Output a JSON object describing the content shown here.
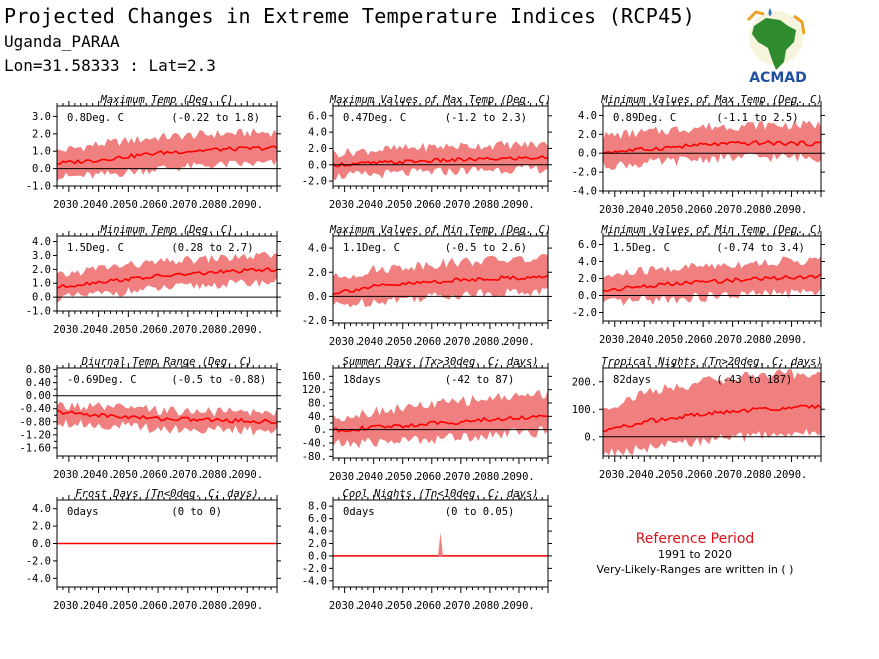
{
  "header": {
    "title": "Projected Changes in Extreme Temperature Indices (RCP45)",
    "location": "Uganda_PARAA",
    "coordinates": "Lon=31.58333 : Lat=2.3"
  },
  "logo": {
    "text": "ACMAD",
    "icon": "africa-map-logo"
  },
  "reference": {
    "title": "Reference Period",
    "years": "1991 to 2020",
    "note": "Very-Likely-Ranges are written in ( )"
  },
  "colors": {
    "band": "#f08080",
    "line": "#ff0000",
    "zero_line": "#000000",
    "ref_title": "#e0101a"
  },
  "chart_data": [
    {
      "type": "area",
      "title": "Maximum Temp (Deg. C)",
      "stat": "0.8Deg. C",
      "range": "(-0.22 to 1.8)",
      "ylim": [
        -1.0,
        3.6
      ],
      "yticks": [
        "3.0",
        "2.0",
        "1.0",
        "0.0",
        "-1.0"
      ],
      "ytick_values": [
        3,
        2,
        1,
        0,
        -1
      ],
      "x": [
        2026,
        2040,
        2060,
        2080,
        2100
      ],
      "median": [
        0.3,
        0.5,
        0.9,
        1.1,
        1.2
      ],
      "lower": [
        -0.5,
        -0.4,
        0.0,
        0.2,
        0.3
      ],
      "upper": [
        1.0,
        1.4,
        1.8,
        2.0,
        2.1
      ],
      "xticks": [
        "2030.",
        "2040.",
        "2050.",
        "2060.",
        "2070.",
        "2080.",
        "2090."
      ]
    },
    {
      "type": "area",
      "title": "Maximum Values of Max Temp (Deg. C)",
      "stat": "0.47Deg. C",
      "range": "(-1.2 to 2.3)",
      "ylim": [
        -2.6,
        7.2
      ],
      "yticks": [
        "6.0",
        "4.0",
        "2.0",
        "0.0",
        "-2.0"
      ],
      "ytick_values": [
        6,
        4,
        2,
        0,
        -2
      ],
      "x": [
        2026,
        2040,
        2060,
        2080,
        2100
      ],
      "median": [
        0.0,
        0.2,
        0.5,
        0.7,
        0.9
      ],
      "lower": [
        -1.4,
        -1.2,
        -0.9,
        -0.6,
        -0.5
      ],
      "upper": [
        1.4,
        1.8,
        2.2,
        2.4,
        2.5
      ],
      "xticks": [
        "2030.",
        "2040.",
        "2050.",
        "2060.",
        "2070.",
        "2080.",
        "2090."
      ]
    },
    {
      "type": "area",
      "title": "Minimum Values of Max Temp (Deg. C)",
      "stat": "0.89Deg. C",
      "range": "(-1.1 to 2.5)",
      "ylim": [
        -4.0,
        5.0
      ],
      "yticks": [
        "4.0",
        "2.0",
        "0.0",
        "-2.0",
        "-4.0"
      ],
      "ytick_values": [
        4,
        2,
        0,
        -2,
        -4
      ],
      "x": [
        2026,
        2040,
        2060,
        2080,
        2100
      ],
      "median": [
        0.1,
        0.4,
        0.9,
        1.1,
        1.0
      ],
      "lower": [
        -1.3,
        -1.1,
        -0.6,
        -0.4,
        -0.5
      ],
      "upper": [
        1.8,
        2.2,
        2.8,
        3.0,
        3.0
      ],
      "xticks": [
        "2030.",
        "2040.",
        "2050.",
        "2060.",
        "2070.",
        "2080.",
        "2090."
      ]
    },
    {
      "type": "area",
      "title": "Minimum Temp (Deg. C)",
      "stat": "1.5Deg. C",
      "range": "(0.28 to 2.7)",
      "ylim": [
        -1.0,
        4.4
      ],
      "yticks": [
        "4.0",
        "3.0",
        "2.0",
        "1.0",
        "0.0",
        "-1.0"
      ],
      "ytick_values": [
        4,
        3,
        2,
        1,
        0,
        -1
      ],
      "x": [
        2026,
        2040,
        2060,
        2080,
        2100
      ],
      "median": [
        0.7,
        1.1,
        1.5,
        1.8,
        2.0
      ],
      "lower": [
        -0.1,
        0.2,
        0.6,
        0.9,
        1.1
      ],
      "upper": [
        1.5,
        2.1,
        2.5,
        2.8,
        3.0
      ],
      "xticks": [
        "2030.",
        "2040.",
        "2050.",
        "2060.",
        "2070.",
        "2080.",
        "2090."
      ]
    },
    {
      "type": "area",
      "title": "Maximum Values of Min Temp (Deg. C)",
      "stat": "1.1Deg. C",
      "range": "(-0.5 to 2.6)",
      "ylim": [
        -2.2,
        5.0
      ],
      "yticks": [
        "4.0",
        "2.0",
        "0.0",
        "-2.0"
      ],
      "ytick_values": [
        4,
        2,
        0,
        -2
      ],
      "x": [
        2026,
        2040,
        2060,
        2080,
        2100
      ],
      "median": [
        0.3,
        0.8,
        1.2,
        1.5,
        1.6
      ],
      "lower": [
        -0.8,
        -0.4,
        0.0,
        0.3,
        0.4
      ],
      "upper": [
        1.5,
        2.2,
        2.7,
        3.0,
        3.1
      ],
      "xticks": [
        "2030.",
        "2040.",
        "2050.",
        "2060.",
        "2070.",
        "2080.",
        "2090."
      ]
    },
    {
      "type": "area",
      "title": "Minimum Values of Min Temp (Deg. C)",
      "stat": "1.5Deg. C",
      "range": "(-0.74 to 3.4)",
      "ylim": [
        -3.0,
        7.0
      ],
      "yticks": [
        "6.0",
        "4.0",
        "2.0",
        "0.0",
        "-2.0"
      ],
      "ytick_values": [
        6,
        4,
        2,
        0,
        -2
      ],
      "x": [
        2026,
        2040,
        2060,
        2080,
        2100
      ],
      "median": [
        0.6,
        1.1,
        1.6,
        2.0,
        2.3
      ],
      "lower": [
        -1.0,
        -0.6,
        -0.2,
        0.2,
        0.4
      ],
      "upper": [
        2.2,
        2.9,
        3.5,
        3.9,
        4.2
      ],
      "xticks": [
        "2030.",
        "2040.",
        "2050.",
        "2060.",
        "2070.",
        "2080.",
        "2090."
      ]
    },
    {
      "type": "area",
      "title": "Diurnal Temp Range (Deg. C)",
      "stat": "-0.69Deg. C",
      "range": "(-0.5 to -0.88)",
      "ylim": [
        -1.85,
        0.85
      ],
      "yticks": [
        "0.80",
        "0.40",
        "0.00",
        "-0.40",
        "-0.80",
        "-1.20",
        "-1.60"
      ],
      "ytick_values": [
        0.8,
        0.4,
        0,
        -0.4,
        -0.8,
        -1.2,
        -1.6
      ],
      "yticks_minor": [
        "0.60",
        "0.20",
        "-0.20",
        "-0.60",
        "-1.00",
        "-1.40"
      ],
      "ytick_minor_values": [
        0.6,
        0.2,
        -0.2,
        -0.6,
        -1.0,
        -1.4
      ],
      "x": [
        2026,
        2040,
        2060,
        2080,
        2100
      ],
      "median": [
        -0.5,
        -0.6,
        -0.7,
        -0.75,
        -0.8
      ],
      "lower": [
        -0.8,
        -0.9,
        -1.0,
        -1.05,
        -1.1
      ],
      "upper": [
        -0.3,
        -0.35,
        -0.45,
        -0.5,
        -0.5
      ],
      "xticks": [
        "2030.",
        "2040.",
        "2050.",
        "2060.",
        "2070.",
        "2080.",
        "2090."
      ]
    },
    {
      "type": "area",
      "title": "Summer Days (Tx>30deg. C; days)",
      "stat": "18days",
      "range": "(-42 to 87)",
      "ylim": [
        -85,
        185
      ],
      "yticks": [
        "160.",
        "120.",
        "80.",
        "40.",
        "0.",
        "-40.",
        "-80."
      ],
      "ytick_values": [
        160,
        120,
        80,
        40,
        0,
        -40,
        -80
      ],
      "yticks_minor": [
        "140.",
        "100.",
        "60.",
        "20.",
        "-20.",
        "-60."
      ],
      "ytick_minor_values": [
        140,
        100,
        60,
        20,
        -20,
        -60
      ],
      "x": [
        2026,
        2040,
        2060,
        2080,
        2100
      ],
      "median": [
        -2,
        6,
        18,
        30,
        42
      ],
      "lower": [
        -45,
        -38,
        -28,
        -15,
        -5
      ],
      "upper": [
        35,
        55,
        75,
        95,
        110
      ],
      "xticks": [
        "2030.",
        "2040.",
        "2050.",
        "2060.",
        "2070.",
        "2080.",
        "2090."
      ]
    },
    {
      "type": "area",
      "title": "Tropical Nights (Tn>20deg. C; days)",
      "stat": "82days",
      "range": "(-43 to 187)",
      "ylim": [
        -70,
        250
      ],
      "yticks": [
        "200.",
        "100.",
        "0."
      ],
      "ytick_values": [
        200,
        100,
        0
      ],
      "x": [
        2026,
        2040,
        2060,
        2080,
        2100
      ],
      "median": [
        20,
        55,
        82,
        100,
        112
      ],
      "lower": [
        -60,
        -45,
        -15,
        5,
        15
      ],
      "upper": [
        100,
        160,
        200,
        225,
        230
      ],
      "xticks": [
        "2030.",
        "2040.",
        "2050.",
        "2060.",
        "2070.",
        "2080.",
        "2090."
      ]
    },
    {
      "type": "area",
      "title": "Frost Days (Tn<0deg. C; days)",
      "stat": "0days",
      "range": "(0 to 0)",
      "ylim": [
        -5.0,
        5.0
      ],
      "yticks": [
        "4.0",
        "2.0",
        "0.0",
        "-2.0",
        "-4.0"
      ],
      "ytick_values": [
        4,
        2,
        0,
        -2,
        -4
      ],
      "x": [
        2026,
        2100
      ],
      "median": [
        0,
        0
      ],
      "lower": [
        0,
        0
      ],
      "upper": [
        0,
        0
      ],
      "xticks": [
        "2030.",
        "2040.",
        "2050.",
        "2060.",
        "2070.",
        "2080.",
        "2090."
      ]
    },
    {
      "type": "area",
      "title": "Cool Nights (Tn<10deg. C; days)",
      "stat": "0days",
      "range": "(0 to 0.05)",
      "ylim": [
        -5.0,
        9.0
      ],
      "yticks": [
        "8.0",
        "6.0",
        "4.0",
        "2.0",
        "0.0",
        "-2.0",
        "-4.0"
      ],
      "ytick_values": [
        8,
        6,
        4,
        2,
        0,
        -2,
        -4
      ],
      "x": [
        2026,
        2100
      ],
      "median": [
        0,
        0
      ],
      "lower": [
        0,
        0
      ],
      "upper": [
        0,
        0
      ],
      "spike": {
        "x": 2063,
        "value": 3.8
      },
      "xticks": [
        "2030.",
        "2040.",
        "2050.",
        "2060.",
        "2070.",
        "2080.",
        "2090."
      ]
    }
  ]
}
